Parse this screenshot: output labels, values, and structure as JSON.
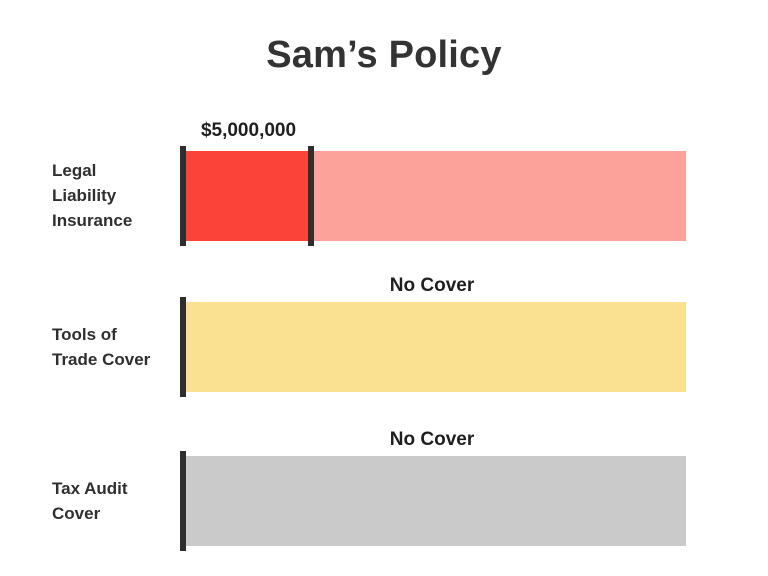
{
  "chart_data": {
    "type": "bar",
    "title": "Sam’s Policy",
    "rows": [
      {
        "label_lines": [
          "Legal",
          "Liability",
          "Insurance"
        ],
        "value_label": "$5,000,000",
        "covered": true,
        "fill_fraction": 0.25,
        "track_color": "#fca29a",
        "fill_color": "#fc433a"
      },
      {
        "label_lines": [
          "Tools of",
          "Trade Cover"
        ],
        "value_label": "No Cover",
        "covered": false,
        "fill_fraction": 0,
        "track_color": "#fae091",
        "fill_color": "#fae091"
      },
      {
        "label_lines": [
          "Tax Audit",
          "Cover"
        ],
        "value_label": "No Cover",
        "covered": false,
        "fill_fraction": 0,
        "track_color": "#cacaca",
        "fill_color": "#cacaca"
      }
    ]
  }
}
